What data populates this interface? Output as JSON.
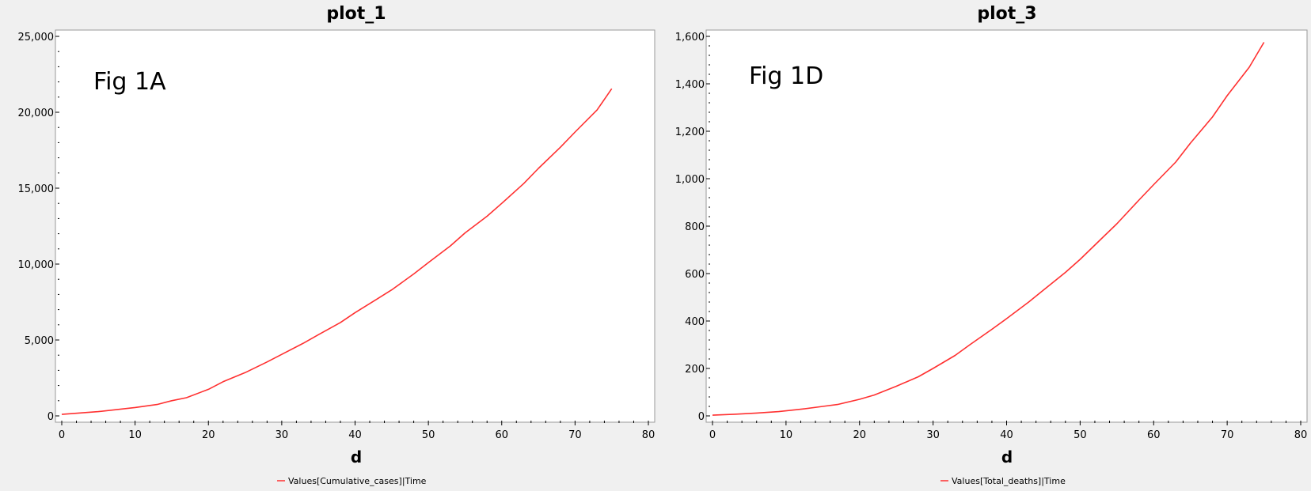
{
  "chart_data": [
    {
      "type": "line",
      "title": "plot_1",
      "xlabel": "d",
      "ylabel": "",
      "annotation": "Fig 1A",
      "xlim": [
        0,
        80
      ],
      "ylim": [
        0,
        25000
      ],
      "xticks": [
        0,
        10,
        20,
        30,
        40,
        50,
        60,
        70,
        80
      ],
      "yticks": [
        0,
        5000,
        10000,
        15000,
        20000,
        25000
      ],
      "ytick_labels": [
        "0",
        "5,000",
        "10,000",
        "15,000",
        "20,000",
        "25,000"
      ],
      "xtick_labels": [
        "0",
        "10",
        "20",
        "30",
        "40",
        "50",
        "60",
        "70",
        "80"
      ],
      "legend_position": "bottom",
      "grid": false,
      "series": [
        {
          "name": "Values[Cumulative_cases]|Time",
          "color": "#ff3030",
          "x": [
            0,
            5,
            10,
            13,
            15,
            17,
            20,
            22,
            25,
            28,
            30,
            33,
            35,
            38,
            40,
            43,
            45,
            48,
            50,
            53,
            55,
            58,
            60,
            63,
            65,
            68,
            70,
            73,
            75
          ],
          "y": [
            100,
            280,
            550,
            750,
            1000,
            1200,
            1750,
            2250,
            2850,
            3550,
            4050,
            4800,
            5350,
            6150,
            6800,
            7700,
            8300,
            9350,
            10100,
            11200,
            12050,
            13150,
            14000,
            15300,
            16300,
            17700,
            18700,
            20150,
            21550
          ]
        }
      ]
    },
    {
      "type": "line",
      "title": "plot_3",
      "xlabel": "d",
      "ylabel": "",
      "annotation": "Fig 1D",
      "xlim": [
        0,
        80
      ],
      "ylim": [
        0,
        1600
      ],
      "xticks": [
        0,
        10,
        20,
        30,
        40,
        50,
        60,
        70,
        80
      ],
      "yticks": [
        0,
        200,
        400,
        600,
        800,
        1000,
        1200,
        1400,
        1600
      ],
      "ytick_labels": [
        "0",
        "200",
        "400",
        "600",
        "800",
        "1,000",
        "1,200",
        "1,400",
        "1,600"
      ],
      "xtick_labels": [
        "0",
        "10",
        "20",
        "30",
        "40",
        "50",
        "60",
        "70",
        "80"
      ],
      "legend_position": "bottom",
      "grid": false,
      "series": [
        {
          "name": "Values[Total_deaths]|Time",
          "color": "#ff3030",
          "x": [
            0,
            3,
            6,
            9,
            12,
            15,
            17,
            20,
            22,
            25,
            28,
            30,
            33,
            35,
            38,
            40,
            43,
            45,
            48,
            50,
            53,
            55,
            58,
            60,
            63,
            65,
            68,
            70,
            73,
            75
          ],
          "y": [
            3,
            7,
            12,
            18,
            28,
            40,
            48,
            70,
            88,
            125,
            165,
            200,
            255,
            300,
            365,
            410,
            480,
            530,
            605,
            660,
            750,
            810,
            910,
            975,
            1070,
            1150,
            1260,
            1350,
            1470,
            1575
          ]
        }
      ]
    }
  ]
}
